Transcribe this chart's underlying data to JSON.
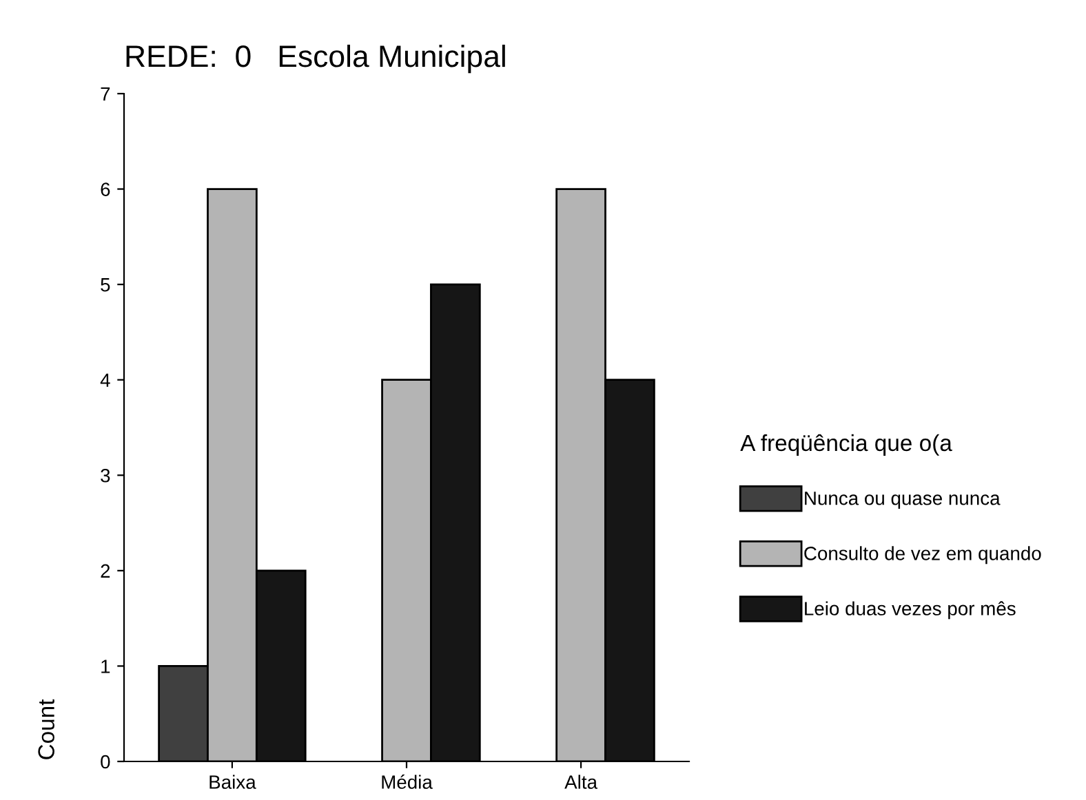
{
  "chart_data": {
    "type": "bar",
    "title": "REDE:  0   Escola Municipal",
    "ylabel": "Count",
    "legend_title": "A freqüência que o(a",
    "categories": [
      "Baixa",
      "Média",
      "Alta"
    ],
    "series": [
      {
        "name": "Nunca ou quase nunca",
        "color": "#404040",
        "values": [
          1,
          null,
          null
        ]
      },
      {
        "name": "Consulto de vez em quando",
        "color": "#b4b4b4",
        "values": [
          6,
          4,
          6
        ]
      },
      {
        "name": "Leio duas vezes por mês",
        "color": "#161616",
        "values": [
          2,
          5,
          4
        ]
      }
    ],
    "ylim": [
      0,
      7
    ],
    "yticks": [
      0,
      1,
      2,
      3,
      4,
      5,
      6,
      7
    ],
    "grid": false,
    "legend": "right"
  }
}
